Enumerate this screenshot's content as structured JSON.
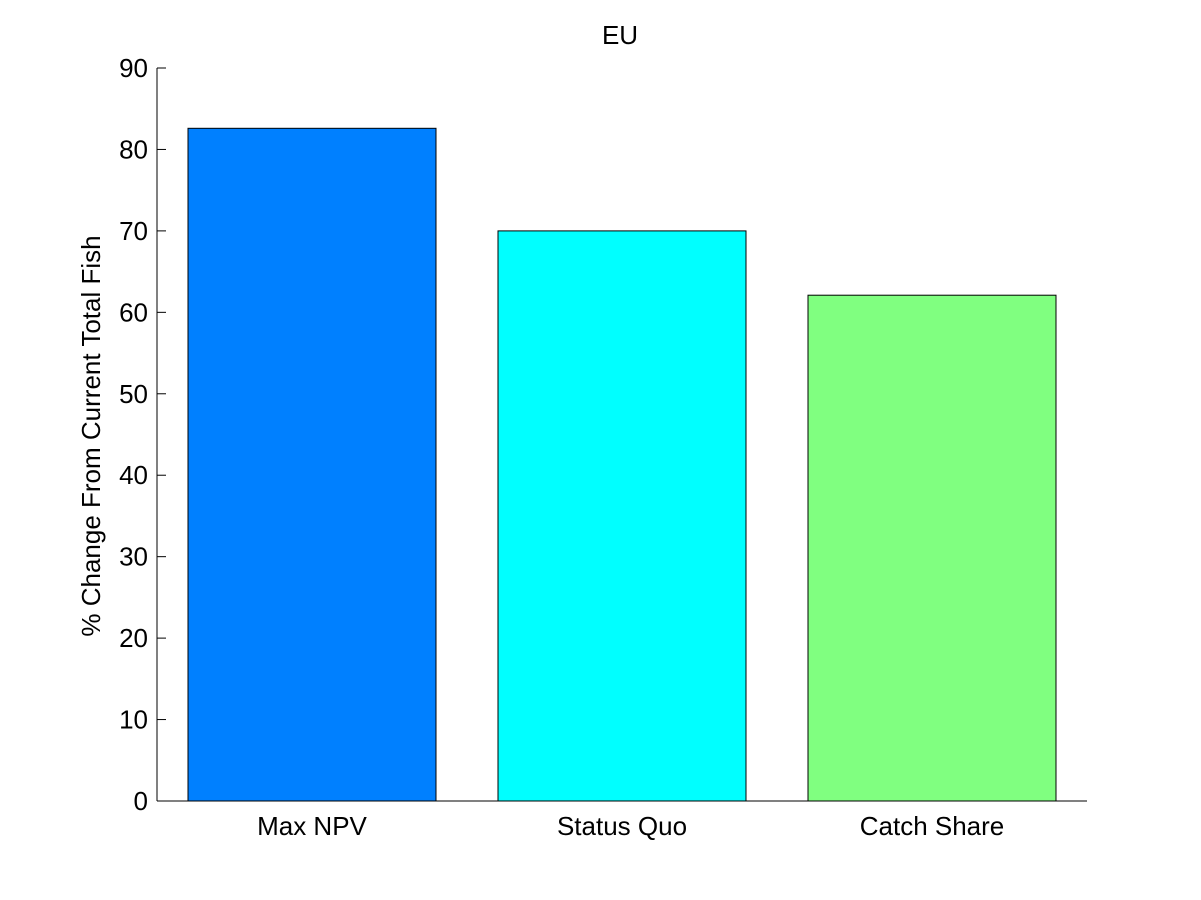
{
  "chart_data": {
    "type": "bar",
    "title": "EU",
    "xlabel": "",
    "ylabel": "% Change From Current Total Fish",
    "categories": [
      "Max NPV",
      "Status Quo",
      "Catch Share"
    ],
    "values": [
      82.6,
      70.0,
      62.1
    ],
    "colors": [
      "#0080ff",
      "#00ffff",
      "#80ff80"
    ],
    "ylim": [
      0,
      90
    ],
    "yticks": [
      0,
      10,
      20,
      30,
      40,
      50,
      60,
      70,
      80,
      90
    ],
    "grid": false,
    "legend": "none"
  }
}
